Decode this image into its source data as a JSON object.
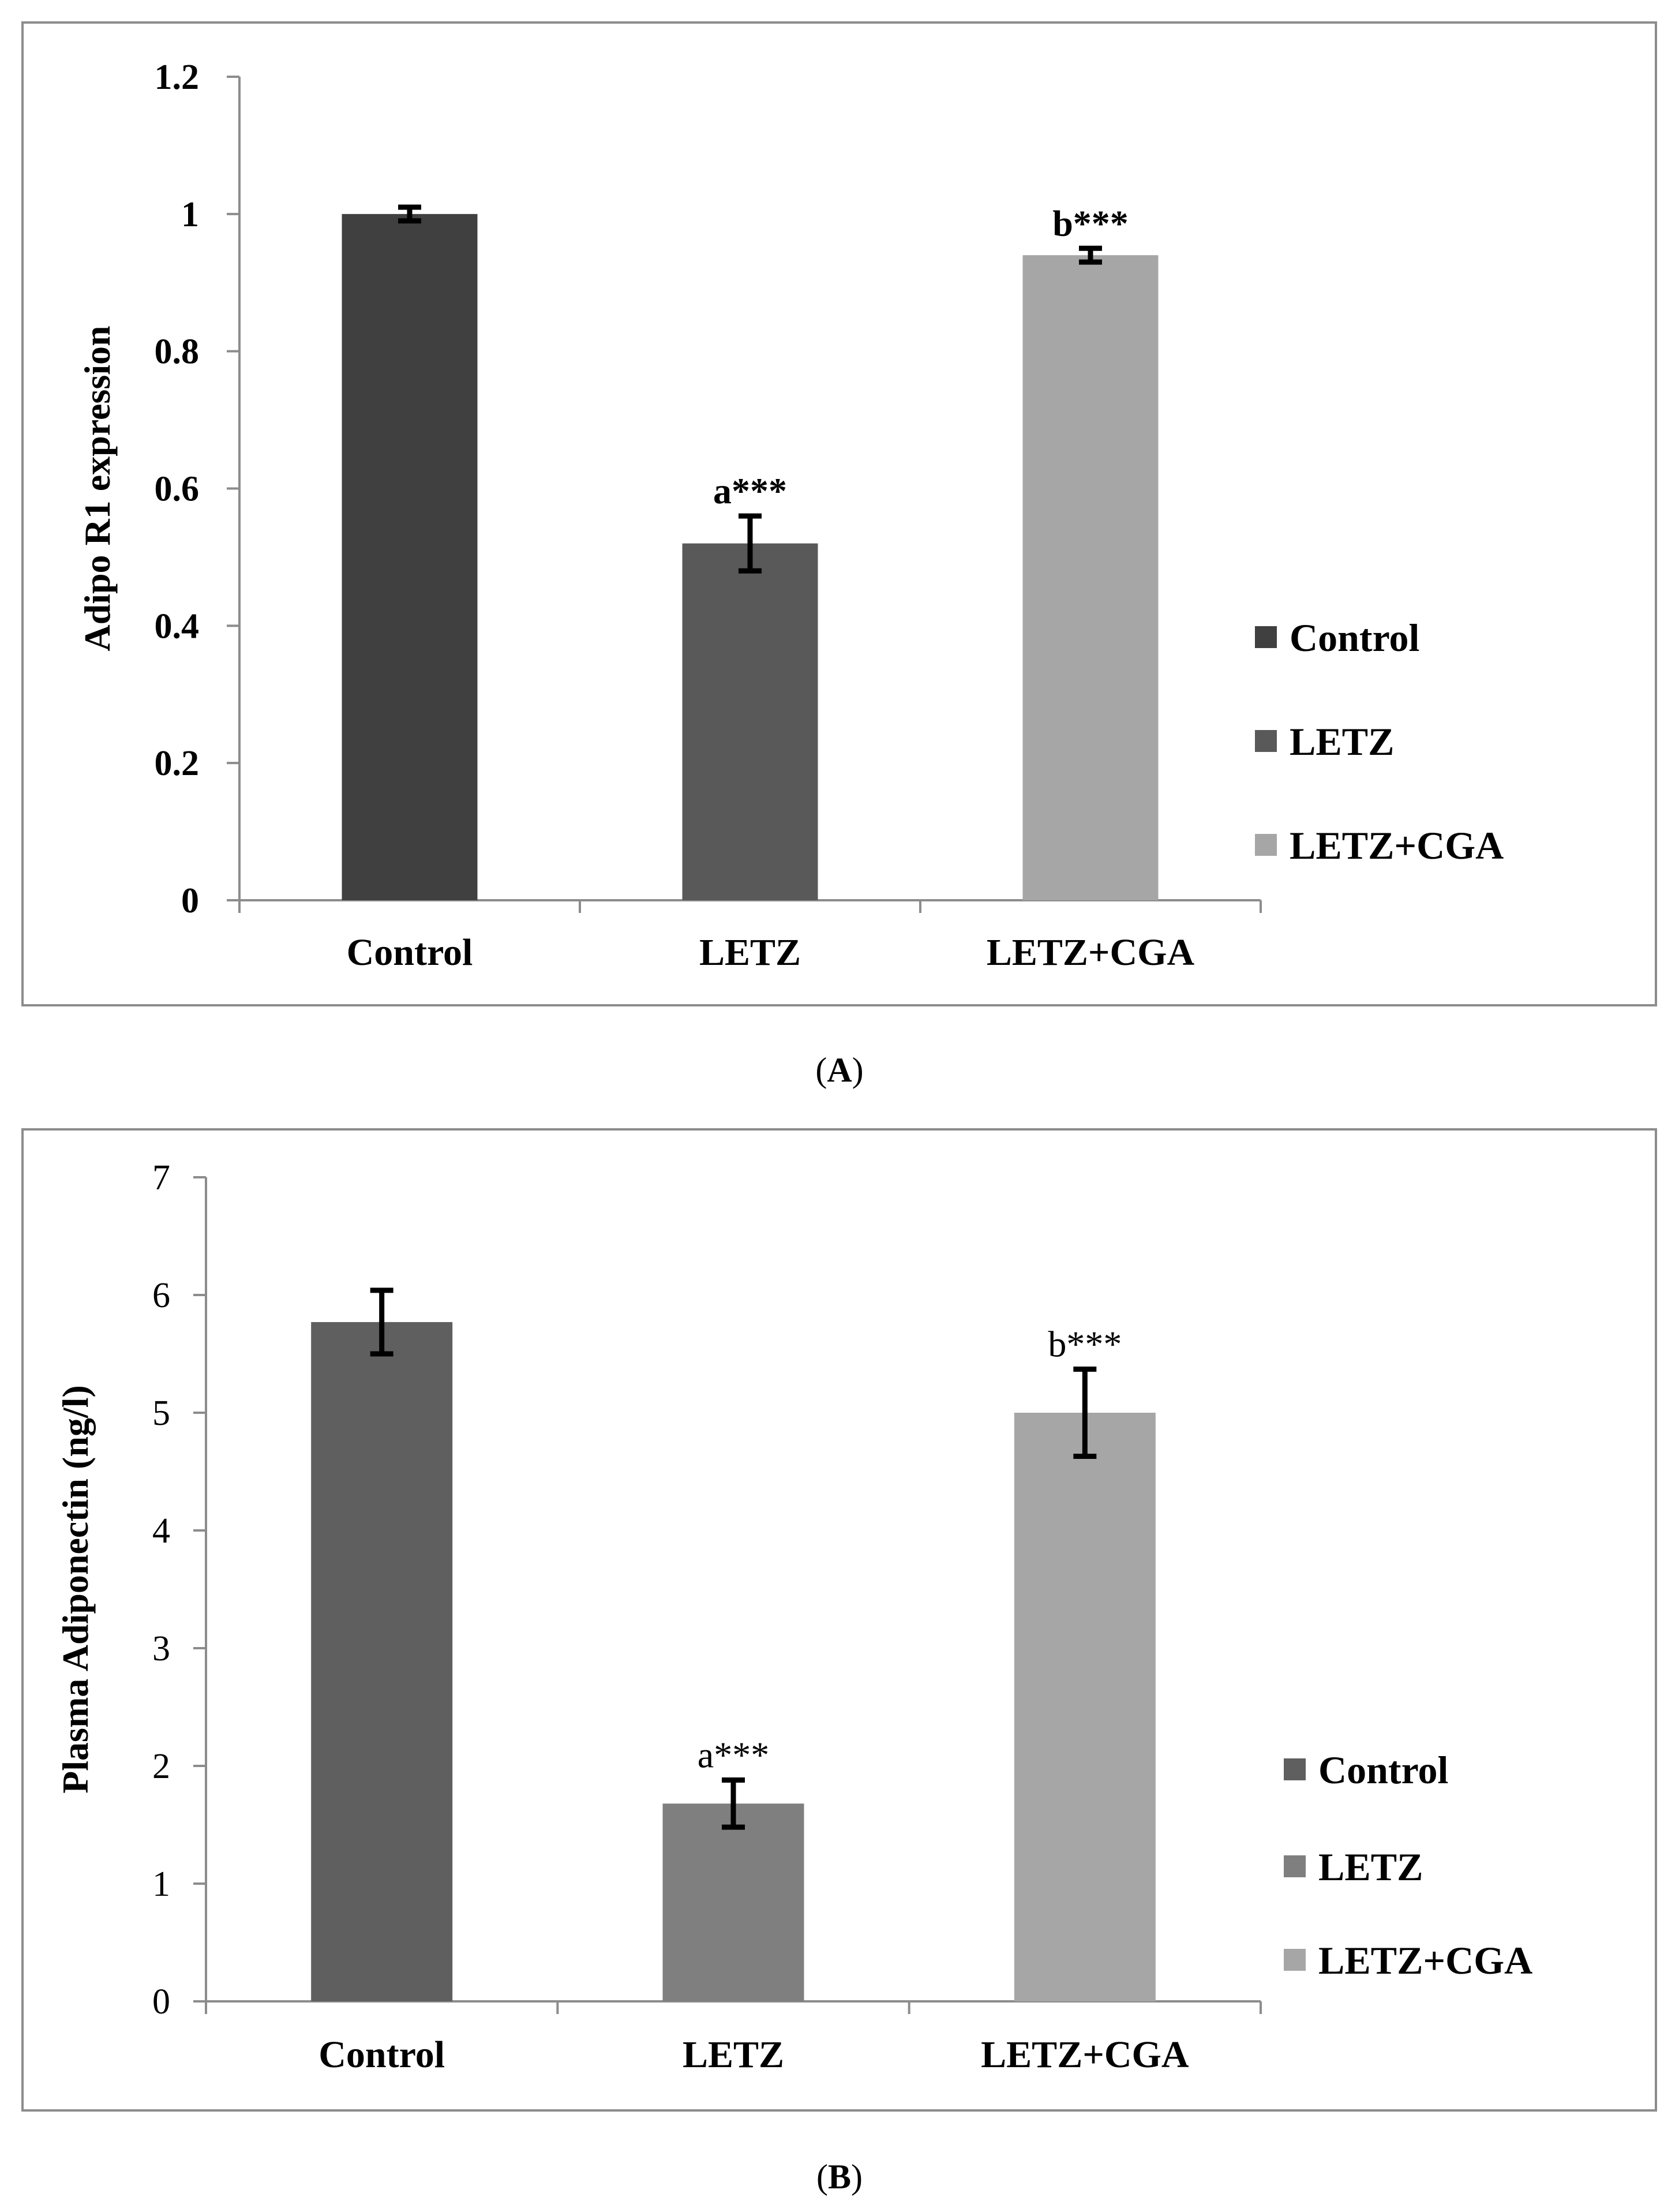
{
  "chart_data": [
    {
      "type": "bar",
      "panel": "A",
      "caption": "A",
      "title": "",
      "xlabel": "",
      "ylabel": "Adipo R1 expression",
      "categories": [
        "Control",
        "LETZ",
        "LETZ+CGA"
      ],
      "values": [
        1.0,
        0.52,
        0.94
      ],
      "errors": [
        0.01,
        0.04,
        0.01
      ],
      "annotations": [
        "",
        "a***",
        "b***"
      ],
      "colors": [
        "#404040",
        "#595959",
        "#a6a6a6"
      ],
      "ylim": [
        0,
        1.2
      ],
      "yticks": [
        0,
        0.2,
        0.4,
        0.6,
        0.8,
        1,
        1.2
      ],
      "ytick_labels": [
        "0",
        "0.2",
        "0.4",
        "0.6",
        "0.8",
        "1",
        "1.2"
      ],
      "legend": [
        "Control",
        "LETZ",
        "LETZ+CGA"
      ],
      "legend_position": "right",
      "grid": false,
      "bold_ticks": true
    },
    {
      "type": "bar",
      "panel": "B",
      "caption": "B",
      "title": "",
      "xlabel": "",
      "ylabel": "Plasma Adiponectin (ng/l)",
      "categories": [
        "Control",
        "LETZ",
        "LETZ+CGA"
      ],
      "values": [
        5.77,
        1.68,
        5.0
      ],
      "errors": [
        0.27,
        0.2,
        0.37
      ],
      "annotations": [
        "",
        "a***",
        "b***"
      ],
      "colors": [
        "#5f5f5f",
        "#7f7f7f",
        "#a6a6a6"
      ],
      "ylim": [
        0,
        7
      ],
      "yticks": [
        0,
        1,
        2,
        3,
        4,
        5,
        6,
        7
      ],
      "ytick_labels": [
        "0",
        "1",
        "2",
        "3",
        "4",
        "5",
        "6",
        "7"
      ],
      "legend": [
        "Control",
        "LETZ",
        "LETZ+CGA"
      ],
      "legend_position": "right",
      "grid": false,
      "bold_ticks": false
    }
  ]
}
